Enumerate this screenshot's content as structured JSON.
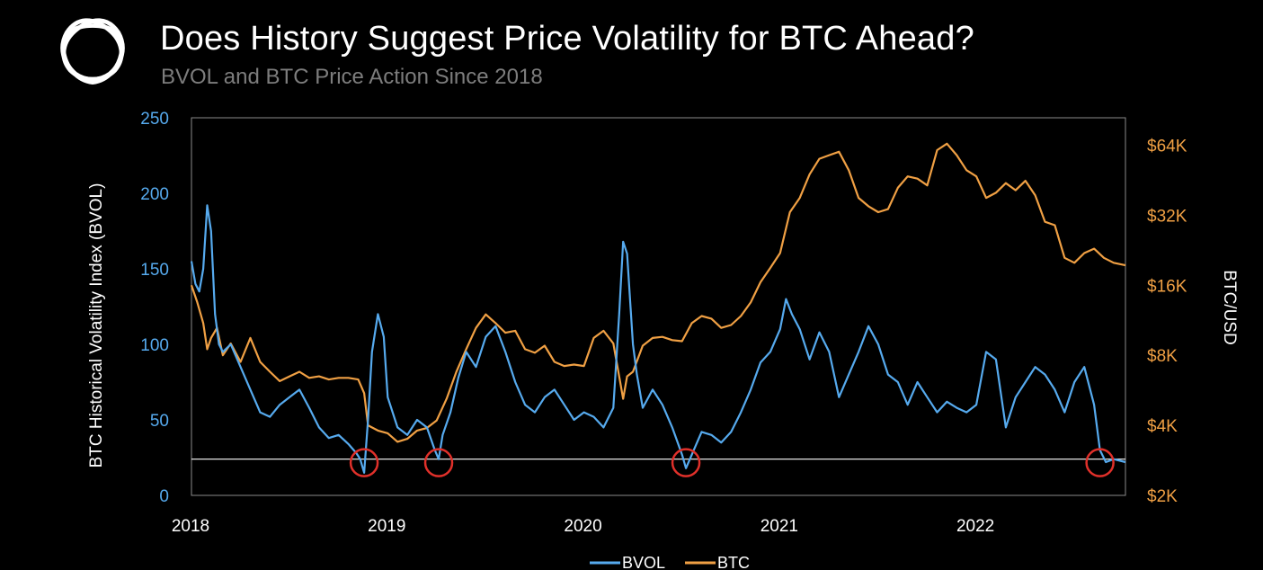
{
  "header": {
    "title": "Does History Suggest Price Volatility for BTC Ahead?",
    "subtitle": "BVOL and BTC Price Action Since 2018",
    "logo_icon": "knot-logo-icon"
  },
  "colors": {
    "bvol": "#56aaee",
    "btc": "#f0a044",
    "threshold": "#ffffff",
    "marker": "#e0302a"
  },
  "chart_data": {
    "type": "line",
    "title": "Does History Suggest Price Volatility for BTC Ahead?",
    "subtitle": "BVOL and BTC Price Action Since 2018",
    "xlabel": "",
    "x_range": [
      2018.0,
      2022.76
    ],
    "x_ticks": [
      2018,
      2019,
      2020,
      2021,
      2022
    ],
    "x_tick_labels": [
      "2018",
      "2019",
      "2020",
      "2021",
      "2022"
    ],
    "y_left": {
      "label": "BTC Historical Volatility Index (BVOL)",
      "range": [
        0,
        250
      ],
      "ticks": [
        0,
        50,
        100,
        150,
        200,
        250
      ],
      "tick_labels": [
        "0",
        "50",
        "100",
        "150",
        "200",
        "250"
      ]
    },
    "y_right": {
      "label": "BTC/USD",
      "scale": "log2",
      "range": [
        2000,
        84000
      ],
      "ticks": [
        2000,
        4000,
        8000,
        16000,
        32000,
        64000
      ],
      "tick_labels": [
        "$2K",
        "$4K",
        "$8K",
        "$16K",
        "$32K",
        "$64K"
      ]
    },
    "threshold_bvol": 24,
    "highlight_x": [
      2018.88,
      2019.26,
      2020.52,
      2022.63
    ],
    "legend": [
      "BVOL",
      "BTC"
    ],
    "series": [
      {
        "name": "BVOL",
        "axis": "left",
        "x": [
          2018.0,
          2018.02,
          2018.04,
          2018.06,
          2018.08,
          2018.1,
          2018.12,
          2018.14,
          2018.16,
          2018.2,
          2018.25,
          2018.3,
          2018.35,
          2018.4,
          2018.45,
          2018.5,
          2018.55,
          2018.6,
          2018.65,
          2018.7,
          2018.75,
          2018.8,
          2018.84,
          2018.86,
          2018.88,
          2018.9,
          2018.92,
          2018.95,
          2018.98,
          2019.0,
          2019.05,
          2019.1,
          2019.15,
          2019.2,
          2019.24,
          2019.26,
          2019.28,
          2019.32,
          2019.36,
          2019.4,
          2019.45,
          2019.5,
          2019.55,
          2019.6,
          2019.65,
          2019.7,
          2019.75,
          2019.8,
          2019.85,
          2019.9,
          2019.95,
          2020.0,
          2020.05,
          2020.1,
          2020.15,
          2020.18,
          2020.2,
          2020.22,
          2020.25,
          2020.27,
          2020.3,
          2020.35,
          2020.4,
          2020.45,
          2020.5,
          2020.52,
          2020.56,
          2020.6,
          2020.65,
          2020.7,
          2020.75,
          2020.8,
          2020.85,
          2020.9,
          2020.95,
          2021.0,
          2021.03,
          2021.06,
          2021.1,
          2021.15,
          2021.2,
          2021.25,
          2021.3,
          2021.35,
          2021.4,
          2021.45,
          2021.5,
          2021.55,
          2021.6,
          2021.65,
          2021.7,
          2021.75,
          2021.8,
          2021.85,
          2021.9,
          2021.95,
          2022.0,
          2022.05,
          2022.1,
          2022.15,
          2022.2,
          2022.25,
          2022.3,
          2022.35,
          2022.4,
          2022.45,
          2022.5,
          2022.55,
          2022.6,
          2022.63,
          2022.66,
          2022.7,
          2022.76
        ],
        "values": [
          155,
          140,
          135,
          150,
          192,
          175,
          120,
          100,
          95,
          100,
          85,
          70,
          55,
          52,
          60,
          65,
          70,
          58,
          45,
          38,
          40,
          34,
          28,
          24,
          15,
          50,
          95,
          120,
          105,
          65,
          45,
          40,
          50,
          45,
          30,
          24,
          40,
          55,
          78,
          95,
          85,
          105,
          112,
          95,
          75,
          60,
          55,
          65,
          70,
          60,
          50,
          55,
          52,
          45,
          58,
          120,
          168,
          160,
          100,
          80,
          58,
          70,
          60,
          45,
          27,
          18,
          30,
          42,
          40,
          35,
          42,
          55,
          70,
          88,
          95,
          110,
          130,
          120,
          110,
          90,
          108,
          95,
          65,
          80,
          95,
          112,
          100,
          80,
          75,
          60,
          75,
          65,
          55,
          62,
          58,
          55,
          60,
          95,
          90,
          45,
          65,
          75,
          85,
          80,
          70,
          55,
          75,
          85,
          60,
          30,
          22,
          24,
          22
        ]
      },
      {
        "name": "BTC",
        "axis": "right",
        "x": [
          2018.0,
          2018.03,
          2018.06,
          2018.08,
          2018.1,
          2018.13,
          2018.16,
          2018.2,
          2018.25,
          2018.3,
          2018.35,
          2018.4,
          2018.45,
          2018.5,
          2018.55,
          2018.6,
          2018.65,
          2018.7,
          2018.75,
          2018.8,
          2018.85,
          2018.88,
          2018.9,
          2018.95,
          2019.0,
          2019.05,
          2019.1,
          2019.15,
          2019.2,
          2019.25,
          2019.3,
          2019.35,
          2019.4,
          2019.45,
          2019.5,
          2019.55,
          2019.6,
          2019.65,
          2019.7,
          2019.75,
          2019.8,
          2019.85,
          2019.9,
          2019.95,
          2020.0,
          2020.05,
          2020.1,
          2020.15,
          2020.2,
          2020.22,
          2020.25,
          2020.3,
          2020.35,
          2020.4,
          2020.45,
          2020.5,
          2020.55,
          2020.6,
          2020.65,
          2020.7,
          2020.75,
          2020.8,
          2020.85,
          2020.9,
          2020.95,
          2021.0,
          2021.05,
          2021.1,
          2021.15,
          2021.2,
          2021.25,
          2021.3,
          2021.35,
          2021.4,
          2021.45,
          2021.5,
          2021.55,
          2021.6,
          2021.65,
          2021.7,
          2021.75,
          2021.8,
          2021.85,
          2021.9,
          2021.95,
          2022.0,
          2022.05,
          2022.1,
          2022.15,
          2022.2,
          2022.25,
          2022.3,
          2022.35,
          2022.4,
          2022.45,
          2022.5,
          2022.55,
          2022.6,
          2022.65,
          2022.7,
          2022.76
        ],
        "values": [
          16000,
          13500,
          11000,
          8500,
          9500,
          10500,
          8000,
          9000,
          7500,
          9500,
          7500,
          6800,
          6200,
          6500,
          6800,
          6400,
          6500,
          6300,
          6400,
          6400,
          6300,
          5500,
          4000,
          3800,
          3700,
          3400,
          3500,
          3800,
          3900,
          4200,
          5200,
          6800,
          8500,
          10500,
          12000,
          11000,
          10000,
          10200,
          8500,
          8200,
          8800,
          7500,
          7200,
          7300,
          7200,
          9500,
          10200,
          9000,
          5200,
          6500,
          6800,
          8800,
          9500,
          9600,
          9300,
          9200,
          11000,
          11800,
          11500,
          10500,
          10800,
          11800,
          13500,
          16500,
          19000,
          22000,
          33000,
          38000,
          48000,
          56000,
          58000,
          60000,
          50000,
          38000,
          35000,
          33000,
          34000,
          42000,
          47000,
          46000,
          43000,
          61000,
          65000,
          58000,
          50000,
          47000,
          38000,
          40000,
          44000,
          41000,
          45000,
          39000,
          30000,
          29000,
          21000,
          20000,
          22000,
          23000,
          21000,
          20000,
          19500
        ]
      }
    ]
  }
}
